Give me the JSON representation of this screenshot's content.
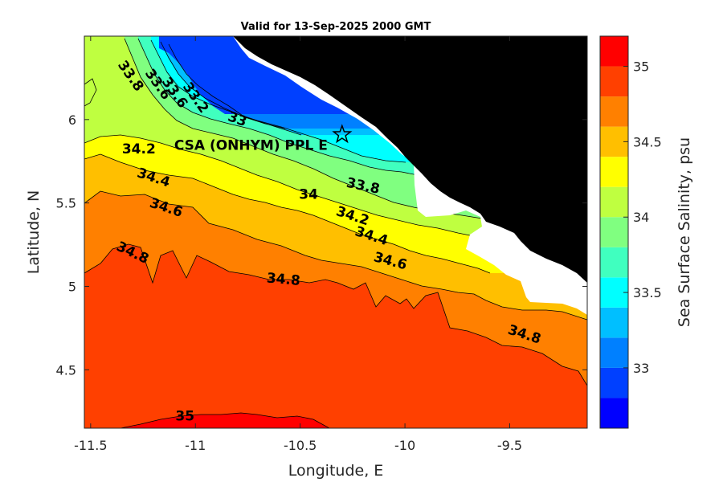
{
  "chart_data": {
    "type": "heatmap",
    "title": "Valid for 13-Sep-2025 2000 GMT",
    "xlabel": "Longitude, E",
    "ylabel": "Latitude, N",
    "xlim": [
      -11.53,
      -9.13
    ],
    "ylim": [
      4.15,
      6.5
    ],
    "x_ticks": [
      "-11.5",
      "-11",
      "-10.5",
      "-10",
      "-9.5"
    ],
    "y_ticks": [
      "4.5",
      "5",
      "5.5",
      "6"
    ],
    "colorbar": {
      "label": "Sea Surface Salinity, psu",
      "range": [
        32.6,
        35.2
      ],
      "ticks": [
        "33",
        "33.5",
        "34",
        "34.5",
        "35"
      ],
      "bands": [
        {
          "lo": 32.6,
          "hi": 32.8,
          "color": "#0000ff"
        },
        {
          "lo": 32.8,
          "hi": 33.0,
          "color": "#0040ff"
        },
        {
          "lo": 33.0,
          "hi": 33.2,
          "color": "#0080ff"
        },
        {
          "lo": 33.2,
          "hi": 33.4,
          "color": "#00bfff"
        },
        {
          "lo": 33.4,
          "hi": 33.6,
          "color": "#00ffff"
        },
        {
          "lo": 33.6,
          "hi": 33.8,
          "color": "#40ffbf"
        },
        {
          "lo": 33.8,
          "hi": 34.0,
          "color": "#80ff80"
        },
        {
          "lo": 34.0,
          "hi": 34.2,
          "color": "#bfff40"
        },
        {
          "lo": 34.2,
          "hi": 34.4,
          "color": "#ffff00"
        },
        {
          "lo": 34.4,
          "hi": 34.6,
          "color": "#ffbf00"
        },
        {
          "lo": 34.6,
          "hi": 34.8,
          "color": "#ff8000"
        },
        {
          "lo": 34.8,
          "hi": 35.0,
          "color": "#ff4000"
        },
        {
          "lo": 35.0,
          "hi": 35.2,
          "color": "#ff0000"
        }
      ]
    },
    "contour_labels": [
      {
        "text": "33.8",
        "lon": -11.31,
        "lat": 6.26,
        "angle": 55
      },
      {
        "text": "33.6",
        "lon": -11.18,
        "lat": 6.21,
        "angle": 55
      },
      {
        "text": "33.6",
        "lon": -11.1,
        "lat": 6.16,
        "angle": 55
      },
      {
        "text": "33.2",
        "lon": -11.0,
        "lat": 6.13,
        "angle": 55
      },
      {
        "text": "33",
        "lon": -10.8,
        "lat": 6.0,
        "angle": 20
      },
      {
        "text": "34.2",
        "lon": -11.27,
        "lat": 5.82,
        "angle": 0
      },
      {
        "text": "34.4",
        "lon": -11.2,
        "lat": 5.65,
        "angle": 18
      },
      {
        "text": "34.6",
        "lon": -11.14,
        "lat": 5.47,
        "angle": 18
      },
      {
        "text": "34.8",
        "lon": -11.3,
        "lat": 5.2,
        "angle": 25
      },
      {
        "text": "34.8",
        "lon": -10.58,
        "lat": 5.04,
        "angle": 5
      },
      {
        "text": "34.8",
        "lon": -9.43,
        "lat": 4.71,
        "angle": 18
      },
      {
        "text": "33.8",
        "lon": -10.2,
        "lat": 5.6,
        "angle": 12
      },
      {
        "text": "34",
        "lon": -10.46,
        "lat": 5.55,
        "angle": 0
      },
      {
        "text": "34.2",
        "lon": -10.25,
        "lat": 5.42,
        "angle": 18
      },
      {
        "text": "34.4",
        "lon": -10.16,
        "lat": 5.3,
        "angle": 18
      },
      {
        "text": "34.6",
        "lon": -10.07,
        "lat": 5.15,
        "angle": 15
      },
      {
        "text": "35",
        "lon": -11.05,
        "lat": 4.22,
        "angle": 0
      }
    ],
    "marker": {
      "label": "CSA (ONHYM) PPL E",
      "lon": -10.3,
      "lat": 5.91,
      "symbol": "star"
    },
    "colors": {
      "land": "#000000",
      "nodata": "#ffffff",
      "contour_line": "#000000"
    }
  }
}
